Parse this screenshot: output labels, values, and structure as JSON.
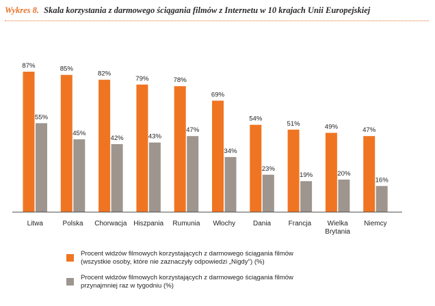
{
  "title": {
    "number": "Wykres 8.",
    "text": "Skala korzystania z darmowego ściągania filmów z Internetu w 10 krajach Unii Europejskiej"
  },
  "colors": {
    "series1": "#f07522",
    "series2": "#9e958e",
    "accent": "#e8732a"
  },
  "chart_data": {
    "type": "bar",
    "title": "Skala korzystania z darmowego ściągania filmów z Internetu w 10 krajach Unii Europejskiej",
    "categories": [
      "Litwa",
      "Polska",
      "Chorwacja",
      "Hiszpania",
      "Rumunia",
      "Włochy",
      "Dania",
      "Francja",
      "Wielka Brytania",
      "Niemcy"
    ],
    "category_lines": [
      [
        "Litwa"
      ],
      [
        "Polska"
      ],
      [
        "Chorwacja"
      ],
      [
        "Hiszpania"
      ],
      [
        "Rumunia"
      ],
      [
        "Włochy"
      ],
      [
        "Dania"
      ],
      [
        "Francja"
      ],
      [
        "Wielka",
        "Brytania"
      ],
      [
        "Niemcy"
      ]
    ],
    "series": [
      {
        "name": "Procent widzów filmowych korzystających z darmowego ściągania filmów (wszystkie osoby, które nie zaznaczyły odpowiedzi „Nigdy\") (%)",
        "values": [
          87,
          85,
          82,
          79,
          78,
          69,
          54,
          51,
          49,
          47
        ],
        "labels": [
          "87%",
          "85%",
          "82%",
          "79%",
          "78%",
          "69%",
          "54%",
          "51%",
          "49%",
          "47%"
        ]
      },
      {
        "name": "Procent widzów filmowych korzystających z darmowego ściągania filmów przynajmniej raz w tygodniu (%)",
        "values": [
          55,
          45,
          42,
          43,
          47,
          34,
          23,
          19,
          20,
          16
        ],
        "labels": [
          "55%",
          "45%",
          "42%",
          "43%",
          "47%",
          "34%",
          "23%",
          "19%",
          "20%",
          "16%"
        ]
      }
    ],
    "xlabel": "",
    "ylabel": "",
    "ylim": [
      0,
      100
    ],
    "grid": false,
    "legend_position": "bottom"
  },
  "legend": [
    {
      "lines": [
        "Procent widzów filmowych korzystających z darmowego ściągania filmów",
        "(wszystkie osoby, które nie zaznaczyły odpowiedzi „Nigdy\") (%)"
      ]
    },
    {
      "lines": [
        "Procent widzów filmowych korzystających z darmowego ściągania filmów",
        "przynajmniej raz w tygodniu (%)"
      ]
    }
  ]
}
